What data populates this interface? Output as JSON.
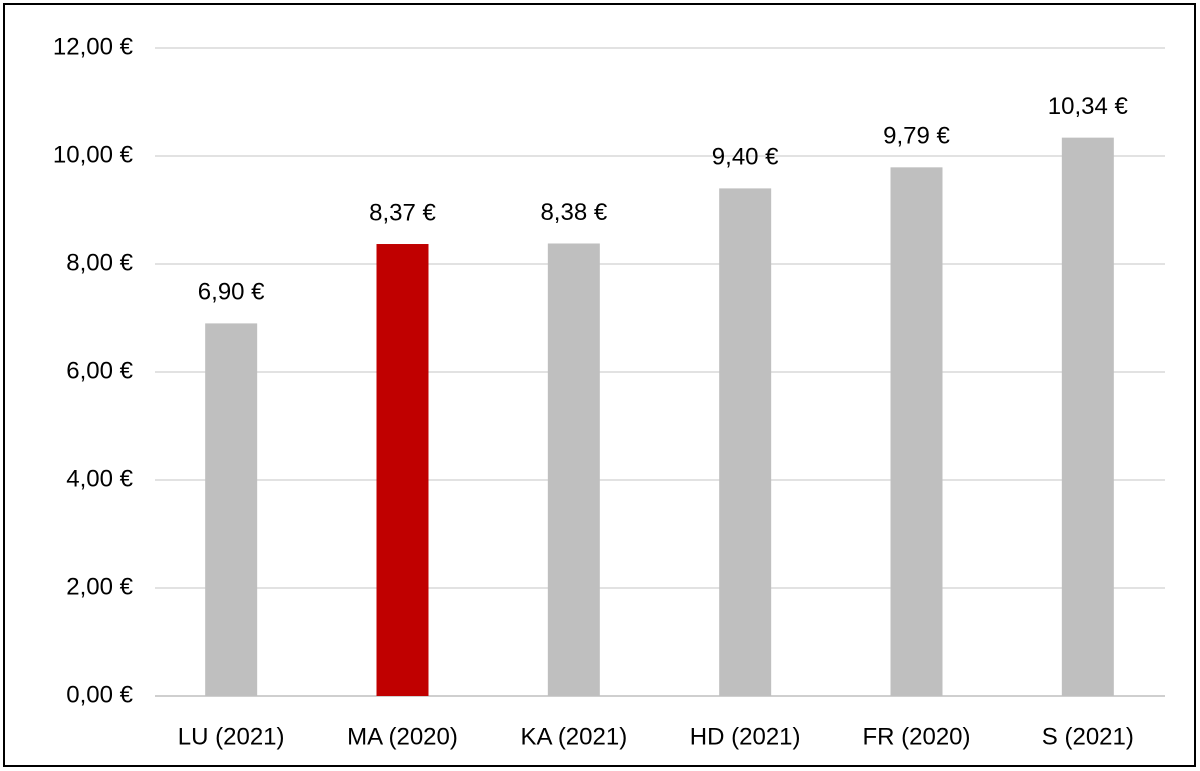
{
  "chart_data": {
    "type": "bar",
    "categories": [
      "LU (2021)",
      "MA (2020)",
      "KA (2021)",
      "HD (2021)",
      "FR (2020)",
      "S (2021)"
    ],
    "values": [
      6.9,
      8.37,
      8.38,
      9.4,
      9.79,
      10.34
    ],
    "value_labels": [
      "6,90 €",
      "8,37 €",
      "8,38 €",
      "9,40 €",
      "9,79 €",
      "10,34 €"
    ],
    "colors": [
      "#bfbfbf",
      "#c00000",
      "#bfbfbf",
      "#bfbfbf",
      "#bfbfbf",
      "#bfbfbf"
    ],
    "ylim": [
      0,
      12
    ],
    "yticks": [
      {
        "value": 0,
        "label": "0,00 €"
      },
      {
        "value": 2,
        "label": "2,00 €"
      },
      {
        "value": 4,
        "label": "4,00 €"
      },
      {
        "value": 6,
        "label": "6,00 €"
      },
      {
        "value": 8,
        "label": "8,00 €"
      },
      {
        "value": 10,
        "label": "10,00 €"
      },
      {
        "value": 12,
        "label": "12,00 €"
      }
    ],
    "grid": true
  }
}
